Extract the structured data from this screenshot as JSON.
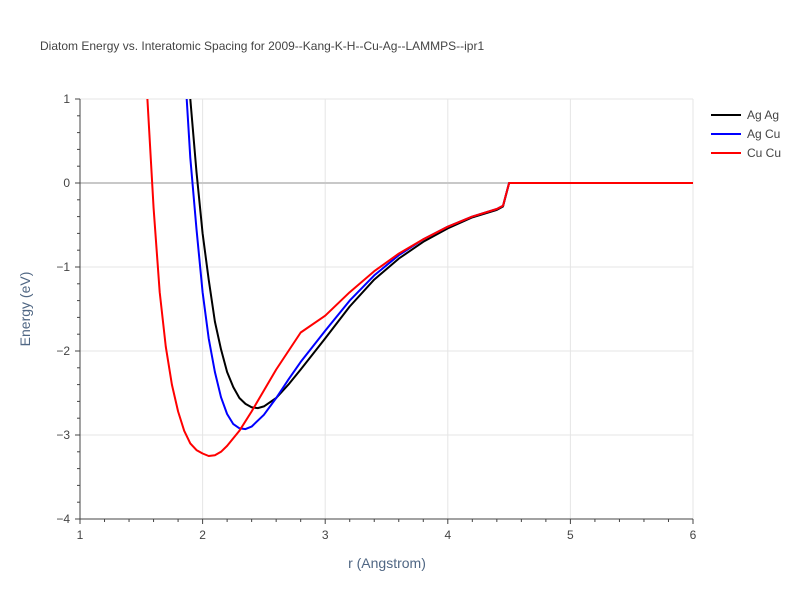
{
  "chart_data": {
    "type": "line",
    "title": "Diatom Energy vs. Interatomic Spacing for 2009--Kang-K-H--Cu-Ag--LAMMPS--ipr1",
    "xlabel": "r (Angstrom)",
    "ylabel": "Energy (eV)",
    "xlim": [
      1,
      6
    ],
    "ylim": [
      -4,
      1
    ],
    "xticks": [
      1,
      2,
      3,
      4,
      5,
      6
    ],
    "yticks": [
      1,
      0,
      -1,
      -2,
      -3,
      -4
    ],
    "xtick_labels": [
      "1",
      "2",
      "3",
      "4",
      "5",
      "6"
    ],
    "ytick_labels": [
      "1",
      "0",
      "−1",
      "−2",
      "−3",
      "−4"
    ],
    "grid": true,
    "zero_line": true,
    "legend_position": "top-right",
    "series": [
      {
        "name": "Ag Ag",
        "color": "#000000",
        "x": [
          1.9,
          1.95,
          2.0,
          2.05,
          2.1,
          2.15,
          2.2,
          2.25,
          2.3,
          2.35,
          2.4,
          2.45,
          2.5,
          2.6,
          2.7,
          2.8,
          3.0,
          3.2,
          3.4,
          3.6,
          3.8,
          4.0,
          4.2,
          4.4,
          4.45,
          4.5,
          6.0
        ],
        "y": [
          1.0,
          0.13,
          -0.6,
          -1.15,
          -1.65,
          -1.98,
          -2.25,
          -2.43,
          -2.56,
          -2.63,
          -2.67,
          -2.68,
          -2.66,
          -2.56,
          -2.4,
          -2.22,
          -1.85,
          -1.47,
          -1.15,
          -0.9,
          -0.7,
          -0.54,
          -0.41,
          -0.32,
          -0.28,
          0.0,
          0.0
        ]
      },
      {
        "name": "Ag Cu",
        "color": "#0000ff",
        "x": [
          1.87,
          1.9,
          1.95,
          2.0,
          2.05,
          2.1,
          2.15,
          2.2,
          2.25,
          2.3,
          2.35,
          2.4,
          2.5,
          2.6,
          2.7,
          2.8,
          3.0,
          3.2,
          3.4,
          3.6,
          3.8,
          4.0,
          4.2,
          4.4,
          4.45,
          4.5,
          6.0
        ],
        "y": [
          1.0,
          0.3,
          -0.55,
          -1.3,
          -1.85,
          -2.25,
          -2.55,
          -2.75,
          -2.87,
          -2.92,
          -2.93,
          -2.9,
          -2.76,
          -2.56,
          -2.34,
          -2.13,
          -1.76,
          -1.4,
          -1.1,
          -0.86,
          -0.67,
          -0.52,
          -0.4,
          -0.31,
          -0.27,
          0.0,
          0.0
        ]
      },
      {
        "name": "Cu Cu",
        "color": "#ff0000",
        "x": [
          1.55,
          1.6,
          1.65,
          1.7,
          1.75,
          1.8,
          1.85,
          1.9,
          1.95,
          2.0,
          2.05,
          2.1,
          2.15,
          2.2,
          2.3,
          2.4,
          2.5,
          2.6,
          2.8,
          3.0,
          3.2,
          3.4,
          3.6,
          3.8,
          4.0,
          4.2,
          4.4,
          4.45,
          4.5,
          6.0
        ],
        "y": [
          1.0,
          -0.3,
          -1.3,
          -1.95,
          -2.4,
          -2.72,
          -2.95,
          -3.1,
          -3.18,
          -3.22,
          -3.25,
          -3.24,
          -3.2,
          -3.13,
          -2.95,
          -2.72,
          -2.47,
          -2.22,
          -1.78,
          -1.58,
          -1.3,
          -1.05,
          -0.84,
          -0.67,
          -0.52,
          -0.4,
          -0.31,
          -0.27,
          0.0,
          0.0
        ]
      }
    ]
  }
}
